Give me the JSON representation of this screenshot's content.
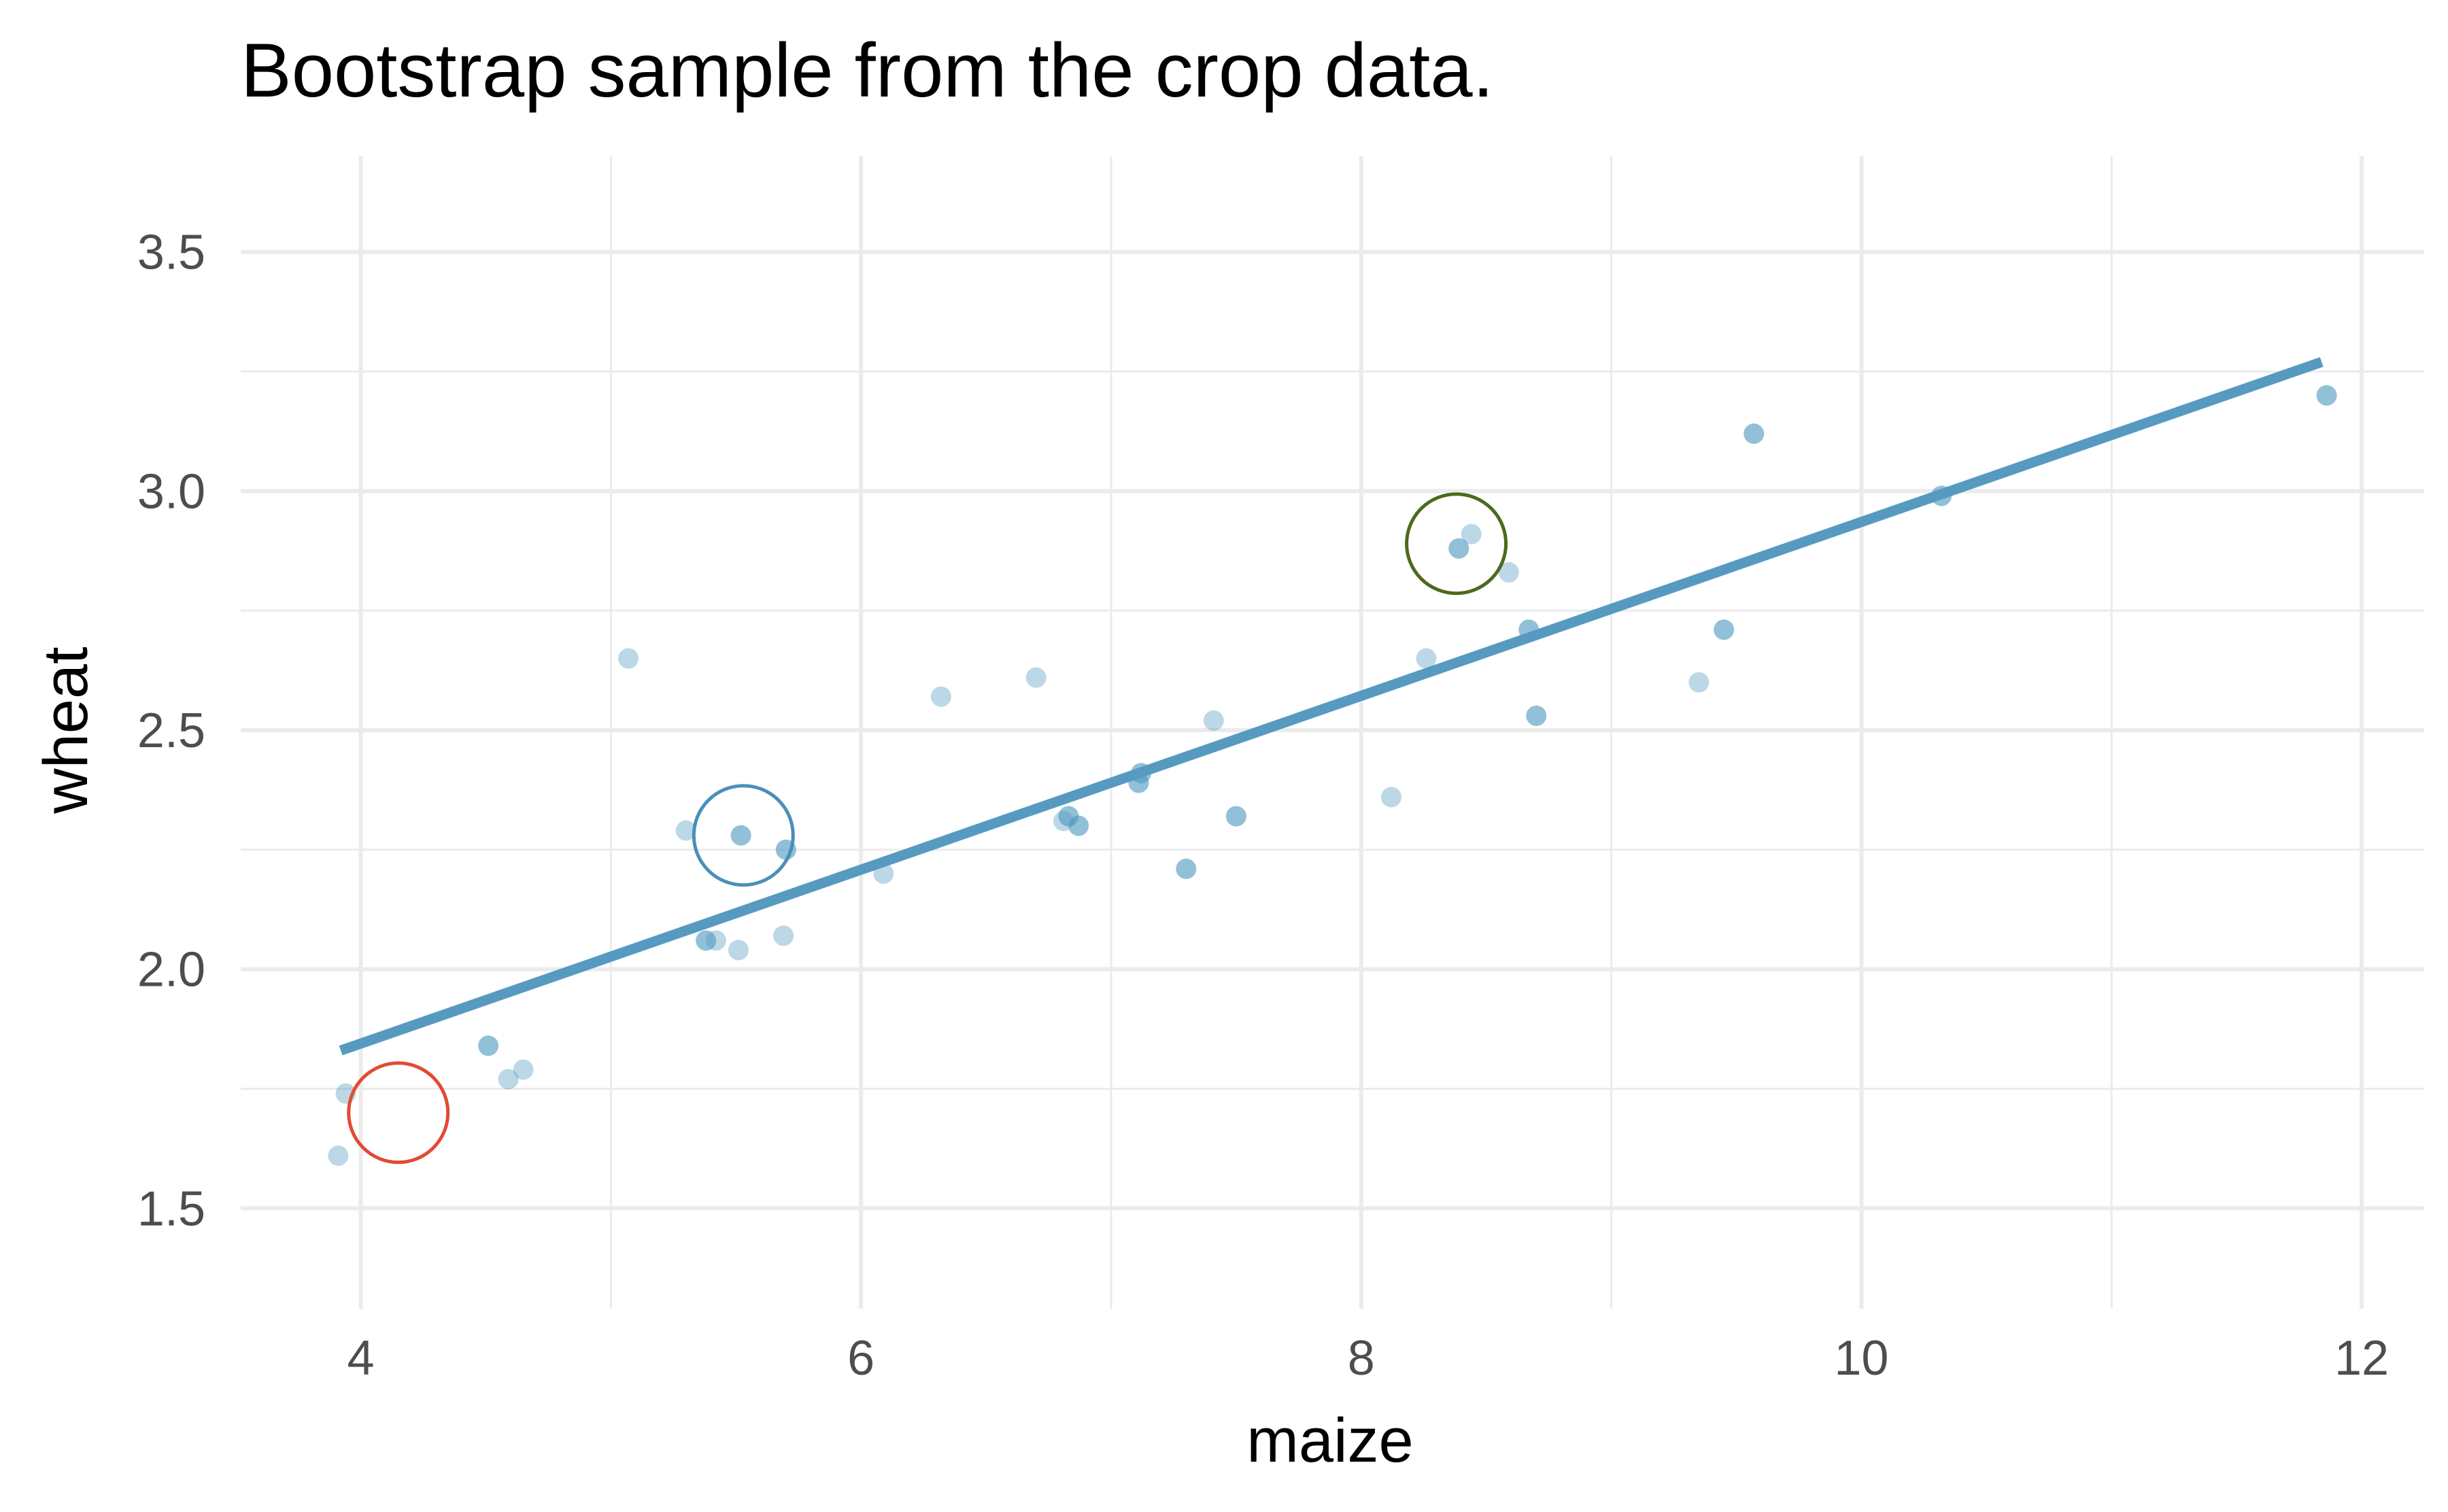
{
  "chart_data": {
    "type": "scatter",
    "title": "Bootstrap sample from the crop data.",
    "xlabel": "maize",
    "ylabel": "wheat",
    "xlim": [
      3.52,
      12.25
    ],
    "ylim": [
      1.29,
      3.7
    ],
    "x_ticks": [
      4,
      6,
      8,
      10,
      12
    ],
    "x_tick_labels": [
      "4",
      "6",
      "8",
      "10",
      "12"
    ],
    "y_ticks": [
      1.5,
      2.0,
      2.5,
      3.0,
      3.5
    ],
    "y_tick_labels": [
      "1.5",
      "2.0",
      "2.5",
      "3.0",
      "3.5"
    ],
    "grid": true,
    "point_color": "#4f98c0",
    "line_color": "#569ac1",
    "series": [
      {
        "points": [
          {
            "x": 3.91,
            "y": 1.61
          },
          {
            "x": 3.94,
            "y": 1.74
          },
          {
            "x": 4.51,
            "y": 1.84
          },
          {
            "x": 4.51,
            "y": 1.84
          },
          {
            "x": 4.59,
            "y": 1.77
          },
          {
            "x": 4.65,
            "y": 1.79
          },
          {
            "x": 5.07,
            "y": 2.65
          },
          {
            "x": 5.3,
            "y": 2.29
          },
          {
            "x": 5.38,
            "y": 2.06
          },
          {
            "x": 5.38,
            "y": 2.06
          },
          {
            "x": 5.42,
            "y": 2.06
          },
          {
            "x": 5.51,
            "y": 2.04
          },
          {
            "x": 5.52,
            "y": 2.28
          },
          {
            "x": 5.52,
            "y": 2.28
          },
          {
            "x": 5.69,
            "y": 2.07
          },
          {
            "x": 5.7,
            "y": 2.25
          },
          {
            "x": 5.7,
            "y": 2.25
          },
          {
            "x": 6.09,
            "y": 2.2
          },
          {
            "x": 6.32,
            "y": 2.57
          },
          {
            "x": 6.7,
            "y": 2.61
          },
          {
            "x": 6.81,
            "y": 2.31
          },
          {
            "x": 6.83,
            "y": 2.32
          },
          {
            "x": 6.83,
            "y": 2.32
          },
          {
            "x": 6.87,
            "y": 2.3
          },
          {
            "x": 6.87,
            "y": 2.3
          },
          {
            "x": 7.11,
            "y": 2.39
          },
          {
            "x": 7.11,
            "y": 2.39
          },
          {
            "x": 7.12,
            "y": 2.41
          },
          {
            "x": 7.12,
            "y": 2.41
          },
          {
            "x": 7.3,
            "y": 2.21
          },
          {
            "x": 7.3,
            "y": 2.21
          },
          {
            "x": 7.41,
            "y": 2.52
          },
          {
            "x": 7.5,
            "y": 2.32
          },
          {
            "x": 7.5,
            "y": 2.32
          },
          {
            "x": 8.12,
            "y": 2.36
          },
          {
            "x": 8.26,
            "y": 2.65
          },
          {
            "x": 8.39,
            "y": 2.88
          },
          {
            "x": 8.39,
            "y": 2.88
          },
          {
            "x": 8.44,
            "y": 2.91
          },
          {
            "x": 8.59,
            "y": 2.83
          },
          {
            "x": 8.67,
            "y": 2.71
          },
          {
            "x": 8.67,
            "y": 2.71
          },
          {
            "x": 8.7,
            "y": 2.53
          },
          {
            "x": 8.7,
            "y": 2.53
          },
          {
            "x": 9.35,
            "y": 2.6
          },
          {
            "x": 9.45,
            "y": 2.71
          },
          {
            "x": 9.45,
            "y": 2.71
          },
          {
            "x": 9.57,
            "y": 3.12
          },
          {
            "x": 9.57,
            "y": 3.12
          },
          {
            "x": 10.32,
            "y": 2.99
          },
          {
            "x": 10.32,
            "y": 2.99
          },
          {
            "x": 11.86,
            "y": 3.2
          },
          {
            "x": 11.86,
            "y": 3.2
          }
        ]
      }
    ],
    "fit_line": {
      "x": [
        3.92,
        11.84
      ],
      "y": [
        1.83,
        3.27
      ]
    },
    "highlight_circles": [
      {
        "x": 4.15,
        "y": 1.7,
        "color": "#e34a33"
      },
      {
        "x": 5.53,
        "y": 2.28,
        "color": "#4a8fb8"
      },
      {
        "x": 8.38,
        "y": 2.89,
        "color": "#4c6a1c"
      }
    ]
  }
}
